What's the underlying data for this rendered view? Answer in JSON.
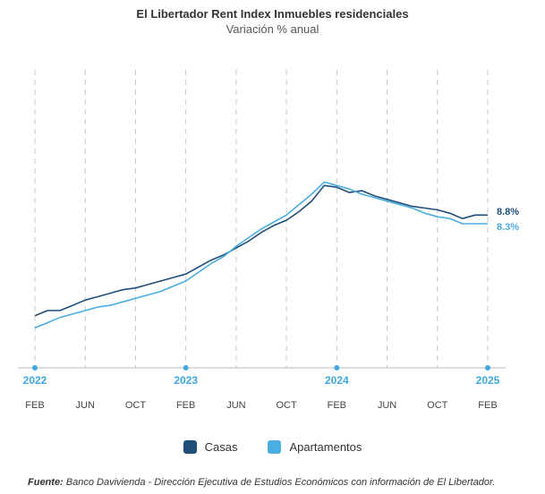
{
  "title": "El Libertador Rent Index Inmuebles residenciales",
  "subtitle": "Variación % anual",
  "source_label": "Fuente:",
  "source_text": "Banco Davivienda - Dirección Ejecutiva de Estudios Económicos con información de El Libertador.",
  "colors": {
    "casas": "#1f4e79",
    "apartamentos": "#4aaee0",
    "year": "#3ea8df",
    "grid": "#c8c8c8",
    "axis": "#bbbbbb"
  },
  "chart_data": {
    "type": "line",
    "title": "El Libertador Rent Index Inmuebles residenciales",
    "subtitle": "Variación % anual",
    "xlabel": "",
    "ylabel": "",
    "grid": "vertical dashed",
    "legend_position": "bottom",
    "x_tick_labels": [
      "FEB",
      "JUN",
      "OCT",
      "FEB",
      "JUN",
      "OCT",
      "FEB",
      "JUN",
      "OCT",
      "FEB"
    ],
    "x_year_labels": [
      "2022",
      "2023",
      "2024",
      "2025"
    ],
    "x": [
      "2022-02",
      "2022-03",
      "2022-04",
      "2022-05",
      "2022-06",
      "2022-07",
      "2022-08",
      "2022-09",
      "2022-10",
      "2022-11",
      "2022-12",
      "2023-01",
      "2023-02",
      "2023-03",
      "2023-04",
      "2023-05",
      "2023-06",
      "2023-07",
      "2023-08",
      "2023-09",
      "2023-10",
      "2023-11",
      "2023-12",
      "2024-01",
      "2024-02",
      "2024-03",
      "2024-04",
      "2024-05",
      "2024-06",
      "2024-07",
      "2024-08",
      "2024-09",
      "2024-10",
      "2024-11",
      "2024-12",
      "2025-01",
      "2025-02"
    ],
    "series": [
      {
        "name": "Casas",
        "values": [
          3.0,
          3.3,
          3.3,
          3.6,
          3.9,
          4.1,
          4.3,
          4.5,
          4.6,
          4.8,
          5.0,
          5.2,
          5.4,
          5.8,
          6.2,
          6.5,
          6.9,
          7.3,
          7.8,
          8.2,
          8.5,
          9.0,
          9.6,
          10.5,
          10.4,
          10.1,
          10.2,
          9.9,
          9.7,
          9.5,
          9.3,
          9.2,
          9.1,
          8.9,
          8.6,
          8.8,
          8.8
        ]
      },
      {
        "name": "Apartamentos",
        "values": [
          2.3,
          2.6,
          2.9,
          3.1,
          3.3,
          3.5,
          3.6,
          3.8,
          4.0,
          4.2,
          4.4,
          4.7,
          5.0,
          5.5,
          6.0,
          6.4,
          7.0,
          7.5,
          8.0,
          8.4,
          8.8,
          9.4,
          10.0,
          10.7,
          10.5,
          10.3,
          10.0,
          9.8,
          9.6,
          9.4,
          9.2,
          8.9,
          8.7,
          8.6,
          8.3,
          8.3,
          8.3
        ]
      }
    ],
    "end_labels": [
      "8.8%",
      "8.3%"
    ],
    "ylim": [
      0,
      12
    ]
  }
}
